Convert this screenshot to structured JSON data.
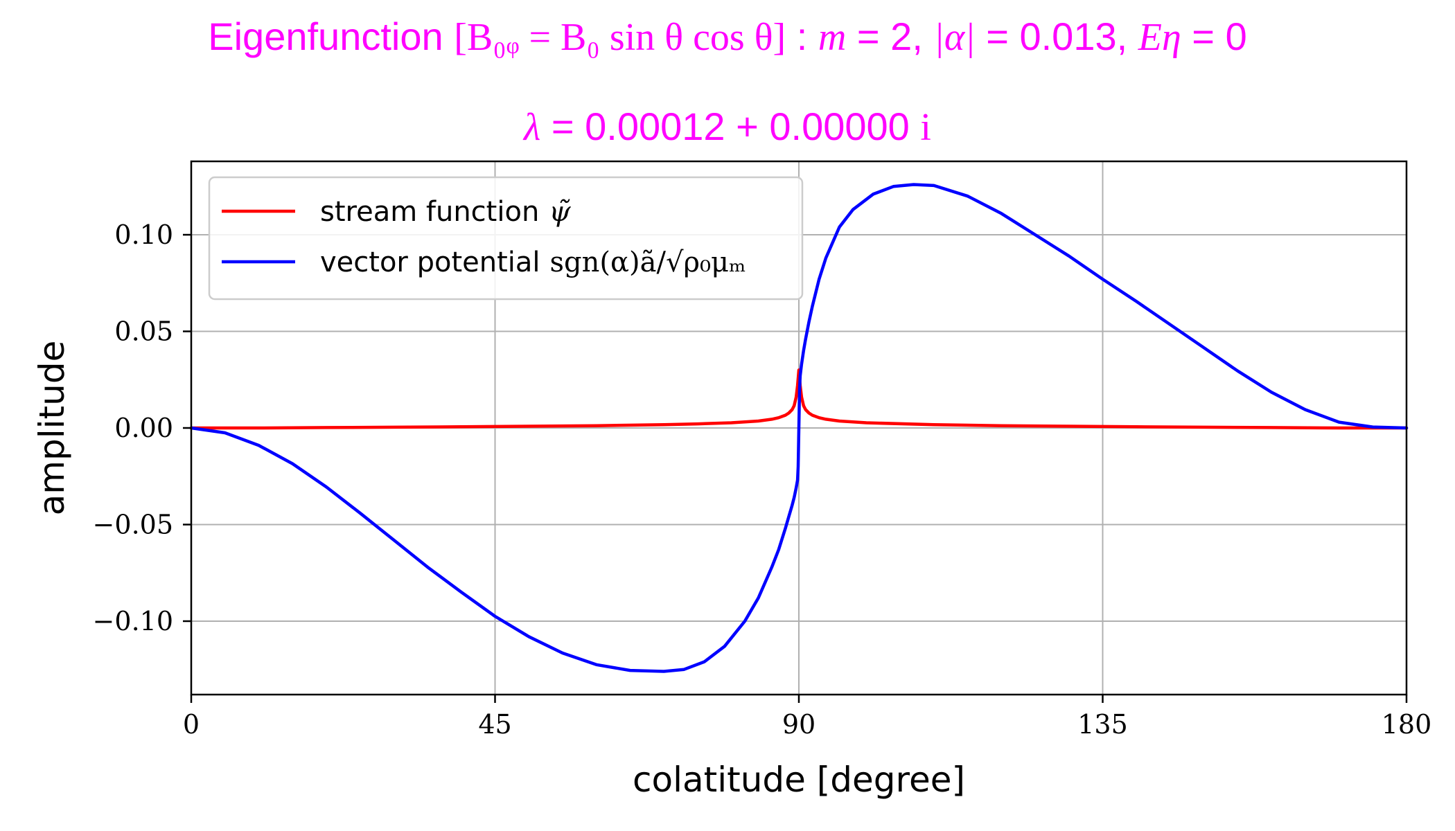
{
  "title": {
    "line1_prefix": "Eigenfunction ",
    "line1_formula": "[B₀ᵩ = B₀ sin θ cos θ]",
    "line1_m_label": "m",
    "line1_m_value": "2",
    "line1_alpha_label": "|α|",
    "line1_alpha_value": "0.013",
    "line1_eta_label": "Eη",
    "line1_eta_value": "0",
    "line2_lambda_label": "λ",
    "line2_value": "0.00012 + 0.00000",
    "line2_imag": "i"
  },
  "colors": {
    "title": "#ff00ff",
    "stream": "#ff0000",
    "vector": "#0000ff",
    "grid": "#b0b0b0",
    "legend_border": "#cccccc"
  },
  "chart_data": {
    "type": "line",
    "xlabel": "colatitude [degree]",
    "ylabel": "amplitude",
    "xlim": [
      0,
      180
    ],
    "ylim": [
      -0.138,
      0.138
    ],
    "xticks": [
      0,
      45,
      90,
      135,
      180
    ],
    "xtick_labels": [
      "0",
      "45",
      "90",
      "135",
      "180"
    ],
    "yticks": [
      -0.1,
      -0.05,
      0.0,
      0.05,
      0.1
    ],
    "ytick_labels": [
      "−0.10",
      "−0.05",
      "0.00",
      "0.05",
      "0.10"
    ],
    "grid": true,
    "legend_position": "top-left",
    "series": [
      {
        "name": "stream function ψ̃",
        "name_text": "stream function",
        "name_math": "ψ̃",
        "color": "#ff0000",
        "x": [
          0,
          10,
          20,
          30,
          40,
          50,
          60,
          70,
          75,
          80,
          84,
          86,
          87,
          88,
          88.5,
          89,
          89.3,
          89.6,
          89.8,
          90,
          90.2,
          90.4,
          90.7,
          91,
          91.5,
          92,
          93,
          94,
          96,
          100,
          110,
          120,
          130,
          140,
          150,
          160,
          170,
          180
        ],
        "y": [
          0,
          0,
          0.0002,
          0.0004,
          0.0006,
          0.0009,
          0.0012,
          0.0017,
          0.0021,
          0.0027,
          0.0036,
          0.0045,
          0.0053,
          0.0066,
          0.0077,
          0.0095,
          0.0115,
          0.016,
          0.022,
          0.03,
          0.022,
          0.016,
          0.0115,
          0.0095,
          0.0077,
          0.0066,
          0.0053,
          0.0045,
          0.0036,
          0.0027,
          0.0017,
          0.0012,
          0.0009,
          0.0006,
          0.0004,
          0.0002,
          0,
          0
        ]
      },
      {
        "name": "vector potential sgn(α)ã/√(ρ₀μₘ)",
        "name_text": "vector potential",
        "name_math": "sgn(α)ã/√ρ₀μₘ",
        "color": "#0000ff",
        "x": [
          0,
          5,
          10,
          15,
          20,
          25,
          30,
          35,
          40,
          45,
          50,
          55,
          60,
          65,
          70,
          73,
          76,
          79,
          82,
          84,
          86,
          87,
          88,
          88.5,
          89,
          89.3,
          89.6,
          89.8,
          89.9,
          90,
          90.1,
          90.2,
          90.4,
          90.7,
          91,
          91.5,
          92,
          93,
          94,
          96,
          98,
          101,
          104,
          107,
          110,
          115,
          120,
          125,
          130,
          135,
          140,
          145,
          150,
          155,
          160,
          165,
          170,
          175,
          180
        ],
        "y": [
          0,
          -0.0025,
          -0.009,
          -0.0185,
          -0.0305,
          -0.044,
          -0.058,
          -0.072,
          -0.085,
          -0.0975,
          -0.108,
          -0.1165,
          -0.1225,
          -0.1255,
          -0.126,
          -0.125,
          -0.121,
          -0.113,
          -0.1,
          -0.088,
          -0.072,
          -0.063,
          -0.052,
          -0.046,
          -0.04,
          -0.036,
          -0.031,
          -0.027,
          -0.02,
          0,
          0.02,
          0.027,
          0.033,
          0.04,
          0.046,
          0.055,
          0.063,
          0.077,
          0.088,
          0.104,
          0.113,
          0.121,
          0.125,
          0.126,
          0.1255,
          0.12,
          0.111,
          0.1,
          0.089,
          0.077,
          0.0655,
          0.0535,
          0.0415,
          0.0295,
          0.0185,
          0.0095,
          0.003,
          0.0005,
          0
        ]
      }
    ]
  }
}
